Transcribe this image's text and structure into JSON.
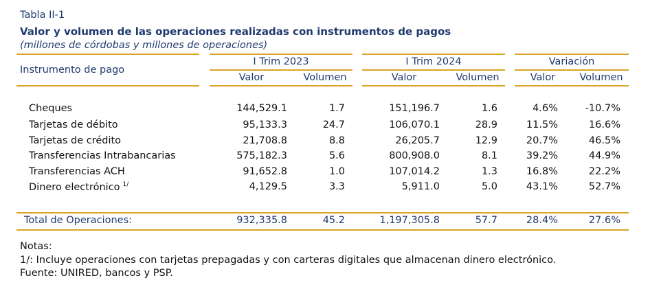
{
  "table": {
    "label": "Tabla II-1",
    "title": "Valor y volumen de las operaciones realizadas con instrumentos de pagos",
    "subtitle": "(millones de córdobas y millones de operaciones)",
    "header": {
      "row_header": "Instrumento de pago",
      "groups": [
        "I Trim 2023",
        "I Trim 2024",
        "Variación"
      ],
      "subcols": [
        "Valor",
        "Volumen",
        "Valor",
        "Volumen",
        "Valor",
        "Volumen"
      ]
    },
    "rows": [
      {
        "name": "Cheques",
        "fn": "",
        "v23": "144,529.1",
        "q23": "1.7",
        "v24": "151,196.7",
        "q24": "1.6",
        "dv": "4.6%",
        "dq": "-10.7%"
      },
      {
        "name": "Tarjetas de débito",
        "fn": "",
        "v23": "95,133.3",
        "q23": "24.7",
        "v24": "106,070.1",
        "q24": "28.9",
        "dv": "11.5%",
        "dq": "16.6%"
      },
      {
        "name": "Tarjetas de crédito",
        "fn": "",
        "v23": "21,708.8",
        "q23": "8.8",
        "v24": "26,205.7",
        "q24": "12.9",
        "dv": "20.7%",
        "dq": "46.5%"
      },
      {
        "name": "Transferencias Intrabancarias",
        "fn": "",
        "v23": "575,182.3",
        "q23": "5.6",
        "v24": "800,908.0",
        "q24": "8.1",
        "dv": "39.2%",
        "dq": "44.9%"
      },
      {
        "name": "Transferencias ACH",
        "fn": "",
        "v23": "91,652.8",
        "q23": "1.0",
        "v24": "107,014.2",
        "q24": "1.3",
        "dv": "16.8%",
        "dq": "22.2%"
      },
      {
        "name": "Dinero electrónico",
        "fn": "1/",
        "v23": "4,129.5",
        "q23": "3.3",
        "v24": "5,911.0",
        "q24": "5.0",
        "dv": "43.1%",
        "dq": "52.7%"
      }
    ],
    "total": {
      "name": "Total de Operaciones:",
      "v23": "932,335.8",
      "q23": "45.2",
      "v24": "1,197,305.8",
      "q24": "57.7",
      "dv": "28.4%",
      "dq": "27.6%"
    }
  },
  "notes": {
    "heading": "Notas:",
    "footnote": "1/: Incluye operaciones con tarjetas prepagadas y con carteras digitales que almacenan dinero electrónico.",
    "source": "Fuente: UNIRED, bancos y PSP."
  }
}
